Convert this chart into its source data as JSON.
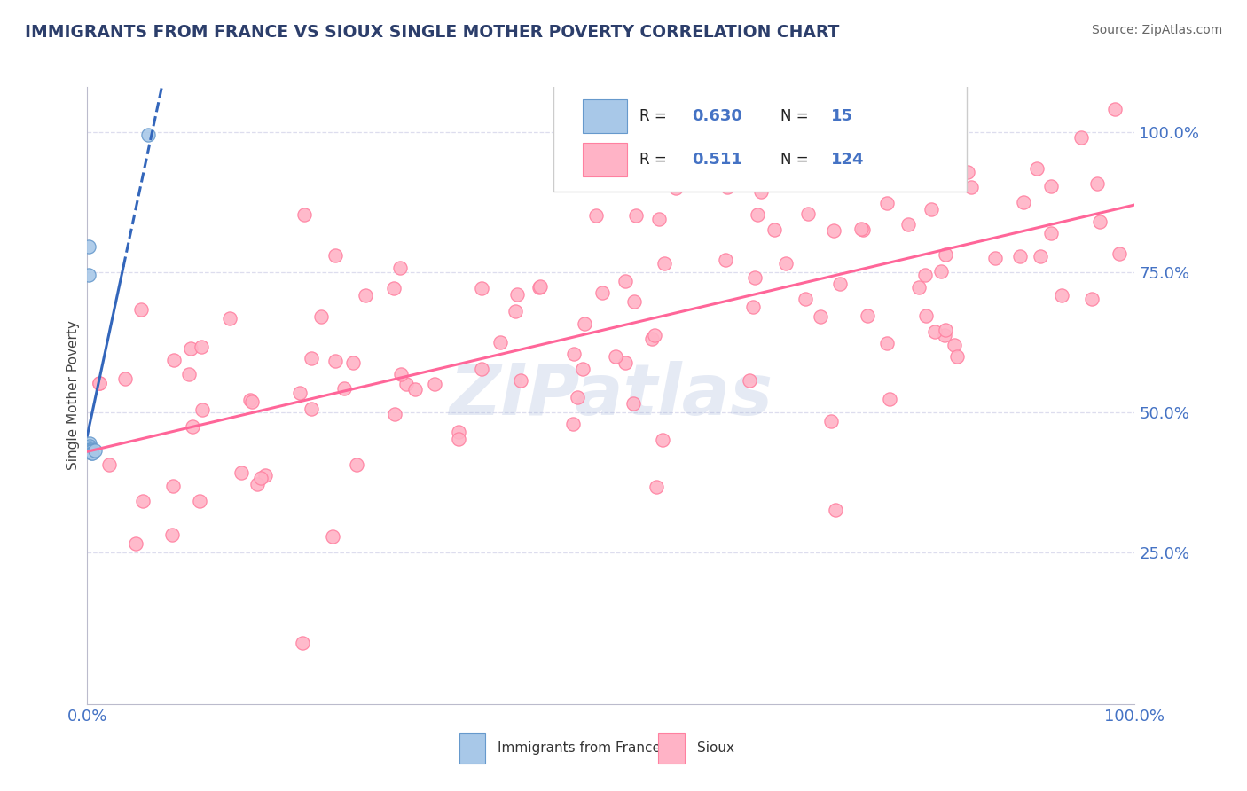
{
  "title": "IMMIGRANTS FROM FRANCE VS SIOUX SINGLE MOTHER POVERTY CORRELATION CHART",
  "source": "Source: ZipAtlas.com",
  "ylabel": "Single Mother Poverty",
  "r_blue": 0.63,
  "n_blue": 15,
  "r_pink": 0.511,
  "n_pink": 124,
  "legend_labels": [
    "Immigrants from France",
    "Sioux"
  ],
  "blue_scatter_color": "#a8c8e8",
  "blue_edge_color": "#6699cc",
  "pink_scatter_color": "#ffb3c6",
  "pink_edge_color": "#ff80a0",
  "blue_line_color": "#3366bb",
  "pink_line_color": "#ff6699",
  "watermark": "ZIPatlas",
  "watermark_color": "#aabbdd",
  "title_color": "#2c3e6b",
  "axis_tick_color": "#4472c4",
  "legend_val_color": "#4472c4",
  "legend_text_color": "#222222",
  "background_color": "#ffffff",
  "grid_color": "#ddddee",
  "blue_x": [
    0.001,
    0.001,
    0.001,
    0.002,
    0.002,
    0.002,
    0.002,
    0.003,
    0.003,
    0.003,
    0.004,
    0.004,
    0.005,
    0.007,
    0.058
  ],
  "blue_y": [
    0.795,
    0.745,
    0.435,
    0.445,
    0.44,
    0.436,
    0.433,
    0.433,
    0.432,
    0.43,
    0.43,
    0.428,
    0.428,
    0.432,
    0.995
  ],
  "pink_seed": 99,
  "xlim": [
    0.0,
    1.0
  ],
  "ylim": [
    -0.02,
    1.08
  ],
  "ytick_vals": [
    0.25,
    0.5,
    0.75,
    1.0
  ],
  "ytick_labels": [
    "25.0%",
    "50.0%",
    "75.0%",
    "100.0%"
  ],
  "pink_trend_x0": 0.0,
  "pink_trend_y0": 0.43,
  "pink_trend_x1": 1.0,
  "pink_trend_y1": 0.87
}
